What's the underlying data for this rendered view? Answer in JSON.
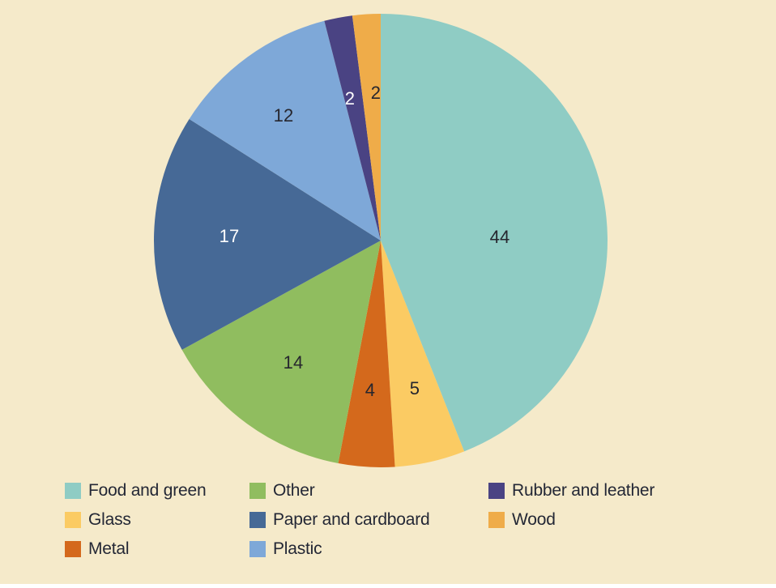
{
  "page": {
    "background_color": "#F5EACA",
    "text_color": "#232735"
  },
  "chart_data": {
    "type": "pie",
    "title": "",
    "values_unit": "percent",
    "direction": "clockwise",
    "start_angle_deg": 0,
    "total": 100,
    "legend_position": "bottom",
    "slices": [
      {
        "label": "Food and green",
        "value": 44,
        "color": "#8FCCC4",
        "value_label_color": "#26262E"
      },
      {
        "label": "Glass",
        "value": 5,
        "color": "#FBCB63",
        "value_label_color": "#26262E"
      },
      {
        "label": "Metal",
        "value": 4,
        "color": "#D4691C",
        "value_label_color": "#26262E"
      },
      {
        "label": "Other",
        "value": 14,
        "color": "#90BD5F",
        "value_label_color": "#26262E"
      },
      {
        "label": "Paper and cardboard",
        "value": 17,
        "color": "#466996",
        "value_label_color": "#FFFFFF"
      },
      {
        "label": "Plastic",
        "value": 12,
        "color": "#7EA8D8",
        "value_label_color": "#26262E"
      },
      {
        "label": "Rubber and leather",
        "value": 2,
        "color": "#4A4383",
        "value_label_color": "#FFFFFF"
      },
      {
        "label": "Wood",
        "value": 2,
        "color": "#EFAC49",
        "value_label_color": "#26262E"
      }
    ],
    "legend_columns": [
      [
        "Food and green",
        "Glass",
        "Metal"
      ],
      [
        "Other",
        "Paper and cardboard",
        "Plastic"
      ],
      [
        "Rubber and leather",
        "Wood"
      ]
    ]
  }
}
